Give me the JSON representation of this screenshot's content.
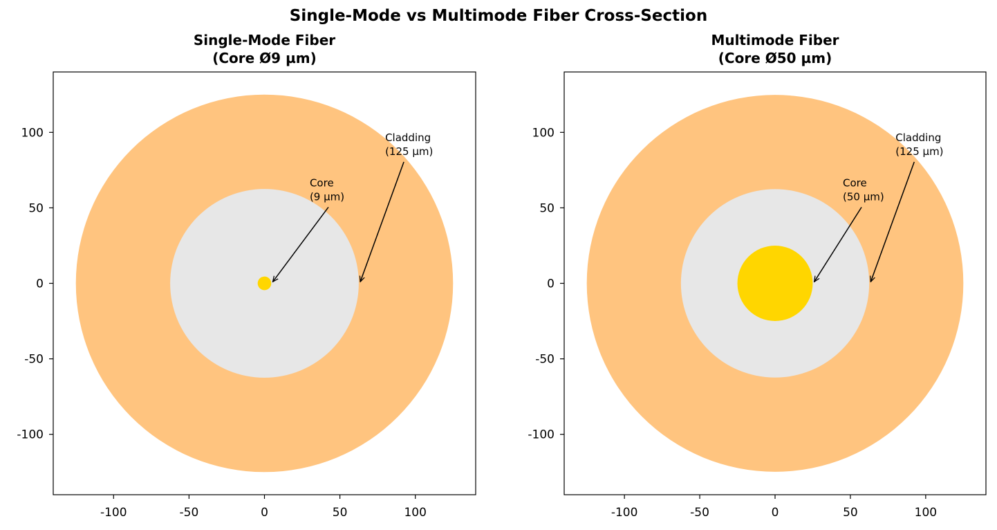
{
  "figure": {
    "title": "Single-Mode vs Multimode Fiber Cross-Section"
  },
  "colors": {
    "outer_ring": "#ffc47f",
    "cladding": "#e7e7e7",
    "core": "#ffd600",
    "axis": "#000000"
  },
  "chart_data": [
    {
      "type": "diagram",
      "title_lines": [
        "Single-Mode Fiber",
        "(Core Ø9 µm)"
      ],
      "xlim": [
        -140,
        140
      ],
      "ylim": [
        -140,
        140
      ],
      "xticks": [
        -100,
        -50,
        0,
        50,
        100
      ],
      "yticks": [
        -100,
        -50,
        0,
        50,
        100
      ],
      "tick_labels": [
        "-100",
        "-50",
        "0",
        "50",
        "100"
      ],
      "circles": [
        {
          "name": "outer-ring",
          "radius": 125,
          "color_key": "outer_ring"
        },
        {
          "name": "cladding",
          "radius": 62.5,
          "color_key": "cladding"
        },
        {
          "name": "core",
          "radius": 4.5,
          "color_key": "core"
        }
      ],
      "annotations": [
        {
          "name": "core",
          "lines": [
            "Core",
            "(9 µm)"
          ],
          "text_xy": [
            30,
            55
          ],
          "arrow_to": [
            5.5,
            1
          ]
        },
        {
          "name": "cladding",
          "lines": [
            "Cladding",
            "(125 µm)"
          ],
          "text_xy": [
            80,
            85
          ],
          "arrow_to": [
            63.5,
            1
          ]
        }
      ]
    },
    {
      "type": "diagram",
      "title_lines": [
        "Multimode Fiber",
        "(Core Ø50 µm)"
      ],
      "xlim": [
        -140,
        140
      ],
      "ylim": [
        -140,
        140
      ],
      "xticks": [
        -100,
        -50,
        0,
        50,
        100
      ],
      "yticks": [
        -100,
        -50,
        0,
        50,
        100
      ],
      "tick_labels": [
        "-100",
        "-50",
        "0",
        "50",
        "100"
      ],
      "circles": [
        {
          "name": "outer-ring",
          "radius": 125,
          "color_key": "outer_ring"
        },
        {
          "name": "cladding",
          "radius": 62.5,
          "color_key": "cladding"
        },
        {
          "name": "core",
          "radius": 25,
          "color_key": "core"
        }
      ],
      "annotations": [
        {
          "name": "core",
          "lines": [
            "Core",
            "(50 µm)"
          ],
          "text_xy": [
            45,
            55
          ],
          "arrow_to": [
            26,
            1
          ]
        },
        {
          "name": "cladding",
          "lines": [
            "Cladding",
            "(125 µm)"
          ],
          "text_xy": [
            80,
            85
          ],
          "arrow_to": [
            63.5,
            1
          ]
        }
      ]
    }
  ]
}
